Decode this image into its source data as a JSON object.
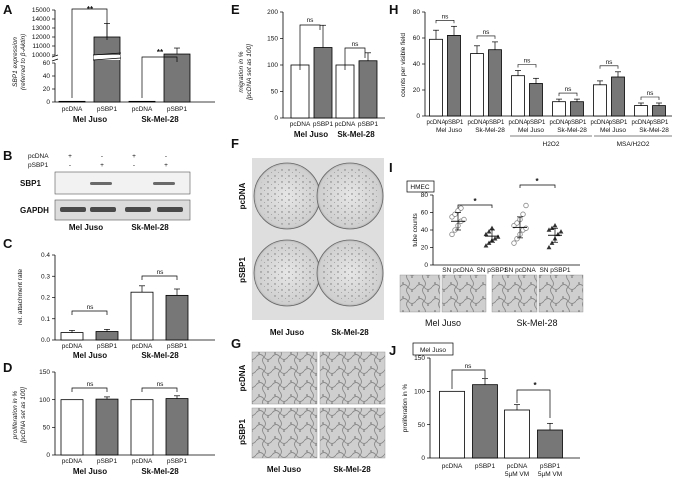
{
  "panels": {
    "A": {
      "label": "A",
      "ylabel_lines": [
        "SBP1 expression",
        "(referred to β-Aktin)"
      ],
      "yticks": [
        "15000",
        "14000",
        "13000",
        "12000",
        "11000",
        "10000",
        "60",
        "40",
        "20",
        "0"
      ],
      "xlabels": [
        "pcDNA",
        "pSBP1",
        "pcDNA",
        "pSBP1"
      ],
      "groups": [
        "Mel Juso",
        "Sk-Mel-28"
      ],
      "sig": [
        "**",
        "**"
      ]
    },
    "B": {
      "label": "B",
      "rows": [
        "pcDNA",
        "pSBP1"
      ],
      "signs": [
        [
          "+",
          "-",
          "+",
          "-"
        ],
        [
          "-",
          "+",
          "-",
          "+"
        ]
      ],
      "bands": [
        "SBP1",
        "GAPDH"
      ],
      "groups": [
        "Mel Juso",
        "Sk-Mel-28"
      ]
    },
    "C": {
      "label": "C",
      "ylabel": "rel. attachment rate",
      "yticks": [
        "0.4",
        "0.3",
        "0.2",
        "0.1",
        "0.0"
      ],
      "xlabels": [
        "pcDNA",
        "pSBP1",
        "pcDNA",
        "pSBP1"
      ],
      "groups": [
        "Mel Juso",
        "Sk-Mel-28"
      ],
      "sig": [
        "ns",
        "ns"
      ]
    },
    "D": {
      "label": "D",
      "ylabel_lines": [
        "proliferation in %",
        "[pcDNA set as 100]"
      ],
      "yticks": [
        "150",
        "100",
        "50",
        "0"
      ],
      "xlabels": [
        "pcDNA",
        "pSBP1",
        "pcDNA",
        "pSBP1"
      ],
      "groups": [
        "Mel Juso",
        "Sk-Mel-28"
      ],
      "sig": [
        "ns",
        "ns"
      ]
    },
    "E": {
      "label": "E",
      "ylabel_lines": [
        "migration in %",
        "[pcDNA set as 100]"
      ],
      "yticks": [
        "200",
        "150",
        "100",
        "50",
        "0"
      ],
      "xlabels": [
        "pcDNA",
        "pSBP1",
        "pcDNA",
        "pSBP1"
      ],
      "groups": [
        "Mel Juso",
        "Sk-Mel-28"
      ],
      "sig": [
        "ns",
        "ns"
      ]
    },
    "F": {
      "label": "F",
      "rows": [
        "pcDNA",
        "pSBP1"
      ],
      "groups": [
        "Mel Juso",
        "Sk-Mel-28"
      ]
    },
    "G": {
      "label": "G",
      "rows": [
        "pcDNA",
        "pSBP1"
      ],
      "groups": [
        "Mel Juso",
        "Sk-Mel-28"
      ]
    },
    "H": {
      "label": "H",
      "ylabel": "counts per visible field",
      "yticks": [
        "80",
        "60",
        "40",
        "20",
        "0"
      ],
      "xlabels": [
        "pcDNA",
        "pSBP1",
        "pcDNA",
        "pSBP1",
        "pcDNA",
        "pSBP1",
        "pcDNA",
        "pSBP1",
        "pcDNA",
        "pSBP1",
        "pcDNA",
        "pSBP1"
      ],
      "cell_lines": [
        "Mel Juso",
        "Sk-Mel-28",
        "Mel Juso",
        "Sk-Mel-28",
        "Mel Juso",
        "Sk-Mel-28"
      ],
      "conditions": [
        "H2O2",
        "MSA/H2O2"
      ],
      "sig": [
        "ns",
        "ns",
        "ns",
        "ns",
        "ns",
        "ns"
      ]
    },
    "I": {
      "label": "I",
      "box": "HMEC",
      "ylabel": "tube counts",
      "yticks": [
        "80",
        "60",
        "40",
        "20",
        "0"
      ],
      "xlabels": [
        "SN pcDNA",
        "SN pSBP1",
        "SN pcDNA",
        "SN pSBP1"
      ],
      "groups": [
        "Mel Juso",
        "Sk-Mel-28"
      ],
      "sig": [
        "*",
        "*"
      ]
    },
    "J": {
      "label": "J",
      "box": "Mel Juso",
      "ylabel": "proliferation in %",
      "yticks": [
        "150",
        "100",
        "50",
        "0"
      ],
      "xlabels": [
        [
          "pcDNA"
        ],
        [
          "pSBP1"
        ],
        [
          "pcDNA",
          "5µM VM"
        ],
        [
          "pSBP1",
          "5µM VM"
        ]
      ],
      "sig": [
        "ns",
        "*"
      ]
    }
  },
  "chart_data": [
    {
      "panel": "A",
      "type": "bar",
      "categories": [
        "Mel Juso pcDNA",
        "Mel Juso pSBP1",
        "Sk-Mel-28 pcDNA",
        "Sk-Mel-28 pSBP1"
      ],
      "values": [
        1,
        12000,
        1,
        430
      ],
      "errors": [
        0,
        1500,
        0,
        80
      ],
      "colors": [
        "#ffffff",
        "#777777",
        "#ffffff",
        "#777777"
      ],
      "ylabel": "SBP1 expression (referred to β-Aktin)",
      "broken_axis": true
    },
    {
      "panel": "C",
      "type": "bar",
      "categories": [
        "Mel Juso pcDNA",
        "Mel Juso pSBP1",
        "Sk-Mel-28 pcDNA",
        "Sk-Mel-28 pSBP1"
      ],
      "values": [
        0.035,
        0.04,
        0.225,
        0.21
      ],
      "errors": [
        0.01,
        0.01,
        0.03,
        0.03
      ],
      "ylim": [
        0,
        0.4
      ],
      "colors": [
        "#ffffff",
        "#777777",
        "#ffffff",
        "#777777"
      ],
      "ylabel": "rel. attachment rate"
    },
    {
      "panel": "D",
      "type": "bar",
      "categories": [
        "Mel Juso pcDNA",
        "Mel Juso pSBP1",
        "Sk-Mel-28 pcDNA",
        "Sk-Mel-28 pSBP1"
      ],
      "values": [
        100,
        101,
        100,
        102
      ],
      "errors": [
        0,
        4,
        0,
        5
      ],
      "ylim": [
        0,
        150
      ],
      "colors": [
        "#ffffff",
        "#777777",
        "#ffffff",
        "#777777"
      ],
      "ylabel": "proliferation in % [pcDNA set as 100]"
    },
    {
      "panel": "E",
      "type": "bar",
      "categories": [
        "Mel Juso pcDNA",
        "Mel Juso pSBP1",
        "Sk-Mel-28 pcDNA",
        "Sk-Mel-28 pSBP1"
      ],
      "values": [
        100,
        133,
        100,
        108
      ],
      "errors": [
        0,
        42,
        0,
        15
      ],
      "ylim": [
        0,
        200
      ],
      "colors": [
        "#ffffff",
        "#777777",
        "#ffffff",
        "#777777"
      ],
      "ylabel": "migration in % [pcDNA set as 100]"
    },
    {
      "panel": "H",
      "type": "bar",
      "categories": [
        "pcDNA",
        "pSBP1",
        "pcDNA",
        "pSBP1",
        "pcDNA",
        "pSBP1",
        "pcDNA",
        "pSBP1",
        "pcDNA",
        "pSBP1",
        "pcDNA",
        "pSBP1"
      ],
      "values": [
        59,
        62,
        48,
        51,
        31,
        25,
        11,
        11,
        24,
        30,
        8,
        8
      ],
      "errors": [
        7,
        7,
        6,
        6,
        4,
        4,
        2,
        2,
        3,
        4,
        2,
        2
      ],
      "ylim": [
        0,
        80
      ],
      "colors": [
        "#ffffff",
        "#777777",
        "#ffffff",
        "#777777",
        "#ffffff",
        "#777777",
        "#ffffff",
        "#777777",
        "#ffffff",
        "#777777",
        "#ffffff",
        "#777777"
      ],
      "ylabel": "counts per visible field"
    },
    {
      "panel": "I",
      "type": "scatter",
      "categories": [
        "SN pcDNA",
        "SN pSBP1",
        "SN pcDNA",
        "SN pSBP1"
      ],
      "series": [
        {
          "values": [
            35,
            40,
            45,
            50,
            52,
            55,
            58,
            62,
            65
          ]
        },
        {
          "values": [
            22,
            25,
            28,
            30,
            32,
            35,
            38,
            42
          ]
        },
        {
          "values": [
            25,
            30,
            35,
            40,
            42,
            45,
            48,
            52,
            58,
            68
          ]
        },
        {
          "values": [
            20,
            25,
            30,
            35,
            38,
            40,
            42,
            45
          ]
        }
      ],
      "means": [
        50,
        33,
        43,
        34
      ],
      "sds": [
        10,
        7,
        12,
        8
      ],
      "ylim": [
        0,
        80
      ],
      "ylabel": "tube counts"
    },
    {
      "panel": "J",
      "type": "bar",
      "categories": [
        "pcDNA",
        "pSBP1",
        "pcDNA 5µM VM",
        "pSBP1 5µM VM"
      ],
      "values": [
        100,
        110,
        72,
        42
      ],
      "errors": [
        0,
        9,
        8,
        10
      ],
      "ylim": [
        0,
        150
      ],
      "colors": [
        "#ffffff",
        "#777777",
        "#ffffff",
        "#777777"
      ],
      "ylabel": "proliferation in %"
    }
  ]
}
